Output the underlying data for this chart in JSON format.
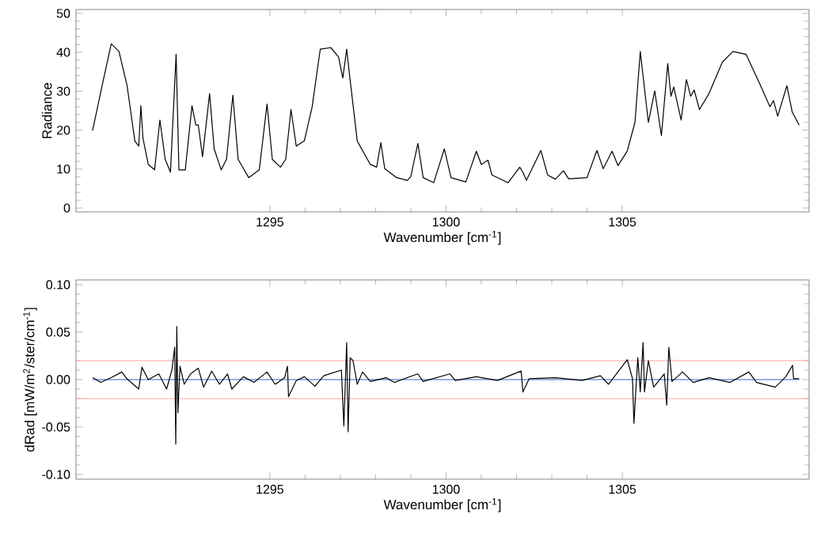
{
  "chart_data": [
    {
      "type": "line",
      "xlabel": "Wavenumber [cm$^{-1}$]",
      "ylabel": "Radiance",
      "xlim": [
        1289.5,
        1310.3
      ],
      "ylim": [
        -1,
        51
      ],
      "xticks": [
        1295,
        1300,
        1305
      ],
      "yticks": [
        0,
        10,
        20,
        30,
        40,
        50
      ],
      "marker": "none",
      "series": [
        {
          "color": "#000000",
          "x": [
            1289.97,
            1290.27,
            1290.5,
            1290.72,
            1290.95,
            1291.17,
            1291.28,
            1291.34,
            1291.4,
            1291.55,
            1291.73,
            1291.88,
            1291.97,
            1292.03,
            1292.18,
            1292.34,
            1292.42,
            1292.6,
            1292.79,
            1292.9,
            1292.97,
            1293.09,
            1293.29,
            1293.42,
            1293.62,
            1293.77,
            1293.95,
            1294.1,
            1294.4,
            1294.7,
            1294.92,
            1295.07,
            1295.3,
            1295.45,
            1295.6,
            1295.75,
            1295.98,
            1296.2,
            1296.43,
            1296.73,
            1296.95,
            1297.07,
            1297.18,
            1297.28,
            1297.48,
            1297.85,
            1298.03,
            1298.15,
            1298.26,
            1298.6,
            1298.9,
            1299.0,
            1299.2,
            1299.35,
            1299.65,
            1299.95,
            1300.14,
            1300.56,
            1300.86,
            1301.0,
            1301.19,
            1301.3,
            1301.76,
            1302.09,
            1302.18,
            1302.28,
            1302.69,
            1302.88,
            1303.1,
            1303.33,
            1303.48,
            1304.0,
            1304.28,
            1304.46,
            1304.71,
            1304.88,
            1305.14,
            1305.36,
            1305.51,
            1305.74,
            1305.92,
            1306.11,
            1306.29,
            1306.38,
            1306.46,
            1306.67,
            1306.82,
            1306.94,
            1307.04,
            1307.19,
            1307.46,
            1307.84,
            1308.14,
            1308.51,
            1308.89,
            1309.19,
            1309.29,
            1309.41,
            1309.67,
            1309.82,
            1310.02
          ],
          "values": [
            19.9,
            32.7,
            42.2,
            40.2,
            31.4,
            17.2,
            15.9,
            26.3,
            17.9,
            11.2,
            9.8,
            22.6,
            16.6,
            12.5,
            9.2,
            39.5,
            9.8,
            9.8,
            26.3,
            21.3,
            21.3,
            13.2,
            29.4,
            15.2,
            9.8,
            12.5,
            29.0,
            12.5,
            7.8,
            9.8,
            26.7,
            12.5,
            10.5,
            12.5,
            25.3,
            15.9,
            17.3,
            26.0,
            40.8,
            41.2,
            38.8,
            33.4,
            40.8,
            32.7,
            17.2,
            11.2,
            10.5,
            16.8,
            10.1,
            7.8,
            7.1,
            8.1,
            16.6,
            7.8,
            6.5,
            15.2,
            7.8,
            6.7,
            14.6,
            11.2,
            12.3,
            8.5,
            6.5,
            10.5,
            9.2,
            7.1,
            14.8,
            8.5,
            7.4,
            9.6,
            7.5,
            7.8,
            14.8,
            10.1,
            14.6,
            10.9,
            14.6,
            22.0,
            40.2,
            22.0,
            30.1,
            18.6,
            37.1,
            28.7,
            31.1,
            22.6,
            33.0,
            28.7,
            30.3,
            25.3,
            29.4,
            37.5,
            40.2,
            39.5,
            32.1,
            26.0,
            27.6,
            23.6,
            31.4,
            24.7,
            21.3
          ]
        }
      ]
    },
    {
      "type": "line",
      "xlabel": "Wavenumber [cm$^{-1}$]",
      "ylabel": "dRad [mW/m$^{2}$/ster/cm$^{-1}$]",
      "xlim": [
        1289.5,
        1310.3
      ],
      "ylim": [
        -0.105,
        0.105
      ],
      "xticks": [
        1295,
        1300,
        1305
      ],
      "yticks": [
        {
          "value": -0.1,
          "label": "-0.10"
        },
        {
          "value": -0.05,
          "label": "-0.05"
        },
        {
          "value": 0,
          "label": "0.00"
        },
        {
          "value": 0.05,
          "label": "0.05"
        },
        {
          "value": 0.1,
          "label": "0.10"
        }
      ],
      "marker": "none",
      "ref_lines": [
        {
          "axis": "y",
          "value": 0.02,
          "color": "#ff9f9f"
        },
        {
          "axis": "y",
          "value": -0.02,
          "color": "#ff9f9f"
        }
      ],
      "series": [
        {
          "color": "#3a5fcd",
          "x": [
            1289.97,
            1310.02
          ],
          "values": [
            0,
            0
          ]
        },
        {
          "color": "#000000",
          "x": [
            1289.97,
            1290.2,
            1290.5,
            1290.8,
            1290.94,
            1291.28,
            1291.37,
            1291.55,
            1291.85,
            1292.07,
            1292.22,
            1292.3,
            1292.33,
            1292.36,
            1292.39,
            1292.45,
            1292.57,
            1292.75,
            1292.97,
            1293.12,
            1293.35,
            1293.57,
            1293.8,
            1293.92,
            1294.25,
            1294.55,
            1294.92,
            1295.15,
            1295.42,
            1295.5,
            1295.53,
            1295.75,
            1295.98,
            1296.28,
            1296.53,
            1297.03,
            1297.1,
            1297.18,
            1297.22,
            1297.28,
            1297.36,
            1297.48,
            1297.63,
            1297.85,
            1298.3,
            1298.53,
            1298.75,
            1299.2,
            1299.35,
            1300.11,
            1300.26,
            1300.86,
            1301.46,
            1302.13,
            1302.18,
            1302.36,
            1303.11,
            1303.86,
            1304.38,
            1304.61,
            1305.14,
            1305.29,
            1305.33,
            1305.44,
            1305.51,
            1305.59,
            1305.63,
            1305.74,
            1305.89,
            1306.19,
            1306.26,
            1306.32,
            1306.41,
            1306.71,
            1307.01,
            1307.46,
            1308.06,
            1308.59,
            1308.81,
            1309.34,
            1309.64,
            1309.83,
            1309.86,
            1310.02
          ],
          "values": [
            0.002,
            -0.003,
            0.002,
            0.008,
            0.001,
            -0.01,
            0.013,
            0,
            0.006,
            -0.01,
            0.01,
            0.034,
            -0.068,
            0.056,
            -0.035,
            0.014,
            -0.005,
            0.006,
            0.012,
            -0.008,
            0.009,
            -0.005,
            0.006,
            -0.01,
            0.003,
            -0.003,
            0.008,
            -0.005,
            0.002,
            0.014,
            -0.018,
            -0.001,
            0.003,
            -0.007,
            0.004,
            0.01,
            -0.049,
            0.039,
            -0.055,
            0.023,
            0.02,
            -0.005,
            0.008,
            -0.002,
            0.002,
            -0.003,
            0,
            0.006,
            -0.002,
            0.006,
            -0.001,
            0.003,
            -0.001,
            0.009,
            -0.013,
            0.001,
            0.002,
            -0.001,
            0.004,
            -0.005,
            0.021,
            0.001,
            -0.046,
            0.023,
            -0.013,
            0.039,
            -0.013,
            0.02,
            -0.008,
            0.006,
            -0.027,
            0.034,
            -0.002,
            0.008,
            -0.003,
            0.002,
            -0.003,
            0.008,
            -0.003,
            -0.008,
            0.003,
            0.015,
            0.001,
            0.001
          ]
        }
      ]
    }
  ]
}
